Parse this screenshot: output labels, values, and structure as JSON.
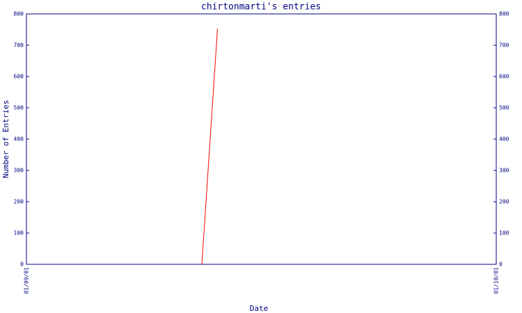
{
  "chart_data": {
    "type": "line",
    "title": "chirtonmarti's entries",
    "x_label": "Date",
    "y_label": "Number of Entries",
    "x": [
      11.2,
      12.2
    ],
    "series": [
      {
        "name": "entries",
        "color": "#ff0000",
        "values": [
          0,
          753
        ]
      }
    ],
    "xlim": [
      0,
      30
    ],
    "xticks": [
      {
        "value": 0,
        "label": "01/09/01"
      },
      {
        "value": 30,
        "label": "01/10/01"
      }
    ],
    "ylim": [
      0,
      800
    ],
    "yticks": [
      0,
      100,
      200,
      300,
      400,
      500,
      600,
      700,
      800
    ],
    "axis_color": "#000080"
  }
}
